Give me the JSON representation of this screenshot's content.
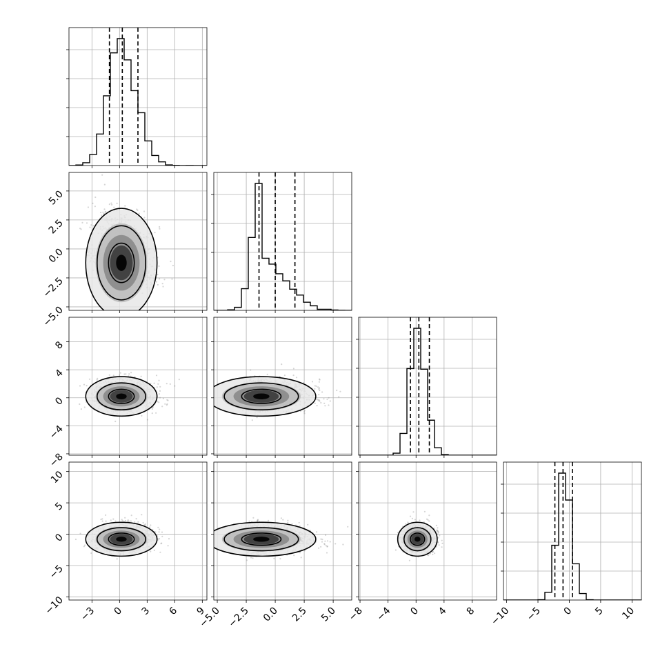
{
  "chart_data": {
    "type": "corner",
    "n_params": 4,
    "grid": true,
    "params": [
      {
        "range": [
          -5.5,
          9.5
        ],
        "ticks": [
          -3,
          0,
          3,
          6,
          9
        ],
        "tick_labels": [
          "−3",
          "0",
          "3",
          "6",
          "9"
        ],
        "quantiles": [
          -1.1,
          0.3,
          2.0
        ],
        "hist_shape": {
          "mode": 0.2,
          "width_left": 1.35,
          "width_right": 1.65
        }
      },
      {
        "range": [
          -5.3,
          6.6
        ],
        "ticks": [
          -5.0,
          -2.5,
          0.0,
          2.5,
          5.0
        ],
        "tick_labels": [
          "−5.0",
          "−2.5",
          "0.0",
          "2.5",
          "5.0"
        ],
        "quantiles": [
          -1.4,
          0.0,
          1.7
        ],
        "hist_shape": {
          "mode": -1.2,
          "width_left": 0.7,
          "width_right": 2.0
        }
      },
      {
        "range": [
          -8.2,
          11.5
        ],
        "ticks": [
          -8,
          -4,
          0,
          4,
          8
        ],
        "tick_labels": [
          "−8",
          "−4",
          "0",
          "4",
          "8"
        ],
        "quantiles": [
          -0.8,
          0.4,
          1.9
        ],
        "hist_shape": {
          "mode": 0.2,
          "width_left": 1.0,
          "width_right": 1.2
        }
      },
      {
        "range": [
          -10.5,
          11.5
        ],
        "ticks": [
          -10,
          -5,
          0,
          5,
          10
        ],
        "tick_labels": [
          "−10",
          "−5",
          "0",
          "5",
          "10"
        ],
        "quantiles": [
          -2.3,
          -1.0,
          0.5
        ],
        "hist_shape": {
          "mode": -0.8,
          "width_left": 1.0,
          "width_right": 1.15
        }
      }
    ],
    "contour_levels": 3,
    "colors": {
      "hist": "#000000",
      "quantile_line": "#000000",
      "scatter": "#888888",
      "grid": "#b0b0b0",
      "contour": "#000000"
    }
  }
}
